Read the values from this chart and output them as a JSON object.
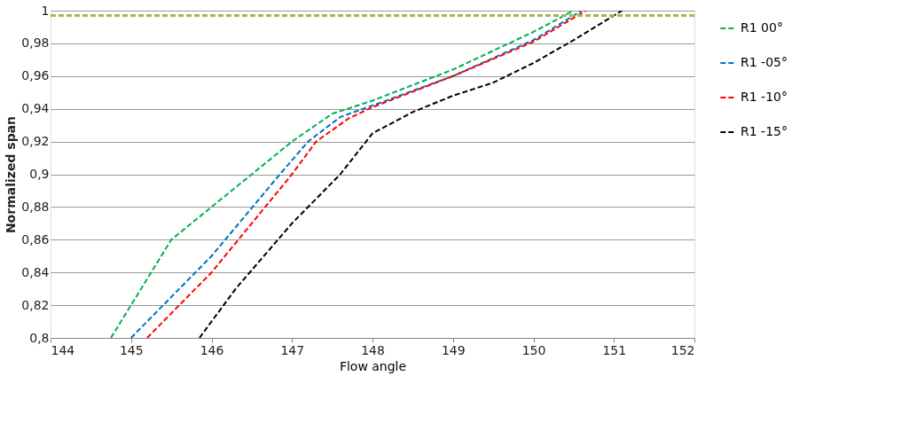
{
  "chart_data": {
    "type": "line",
    "xlabel": "Flow angle",
    "ylabel": "Normalized span",
    "xlim": [
      144,
      152
    ],
    "xticks": [
      144,
      145,
      146,
      147,
      148,
      149,
      150,
      151,
      152
    ],
    "ylim": [
      0.8,
      1
    ],
    "yticks": [
      {
        "value": 0.8,
        "label": "0,8"
      },
      {
        "value": 0.82,
        "label": "0,82"
      },
      {
        "value": 0.84,
        "label": "0,84"
      },
      {
        "value": 0.86,
        "label": "0,86"
      },
      {
        "value": 0.88,
        "label": "0,88"
      },
      {
        "value": 0.9,
        "label": "0,9"
      },
      {
        "value": 0.92,
        "label": "0,92"
      },
      {
        "value": 0.94,
        "label": "0,94"
      },
      {
        "value": 0.96,
        "label": "0,96"
      },
      {
        "value": 0.98,
        "label": "0,98"
      },
      {
        "value": 1,
        "label": "1"
      }
    ],
    "grid": "y",
    "legend": "right",
    "line_style": "dashed",
    "marker": "none",
    "ref_lines": [
      {
        "axis": "y",
        "value": 0.997,
        "color": "#9bbb59",
        "line_style": "dashed"
      }
    ],
    "series": [
      {
        "name": "R1 00°",
        "color": "#00b050",
        "x": [
          144.75,
          145.5,
          146.5,
          147,
          147.5,
          148,
          149,
          150,
          150.5
        ],
        "values": [
          0.8,
          0.86,
          0.9,
          0.92,
          0.937,
          0.945,
          0.964,
          0.987,
          1.0
        ]
      },
      {
        "name": "R1 -05°",
        "color": "#0070c0",
        "x": [
          145,
          146,
          146.85,
          147.2,
          147.6,
          148,
          149,
          150,
          150.6
        ],
        "values": [
          0.8,
          0.85,
          0.9,
          0.92,
          0.935,
          0.942,
          0.96,
          0.982,
          1.0
        ]
      },
      {
        "name": "R1 -10°",
        "color": "#ff0000",
        "x": [
          145.2,
          146,
          147,
          147.3,
          147.7,
          148,
          149,
          150,
          150.65
        ],
        "values": [
          0.8,
          0.84,
          0.9,
          0.92,
          0.934,
          0.941,
          0.96,
          0.981,
          1.0
        ]
      },
      {
        "name": "R1 -15°",
        "color": "#000000",
        "x": [
          145.85,
          146.3,
          147,
          147.6,
          148,
          148.5,
          149,
          149.5,
          150,
          150.5,
          151.1
        ],
        "values": [
          0.8,
          0.83,
          0.87,
          0.9,
          0.925,
          0.938,
          0.948,
          0.956,
          0.968,
          0.982,
          1.0
        ]
      }
    ]
  }
}
